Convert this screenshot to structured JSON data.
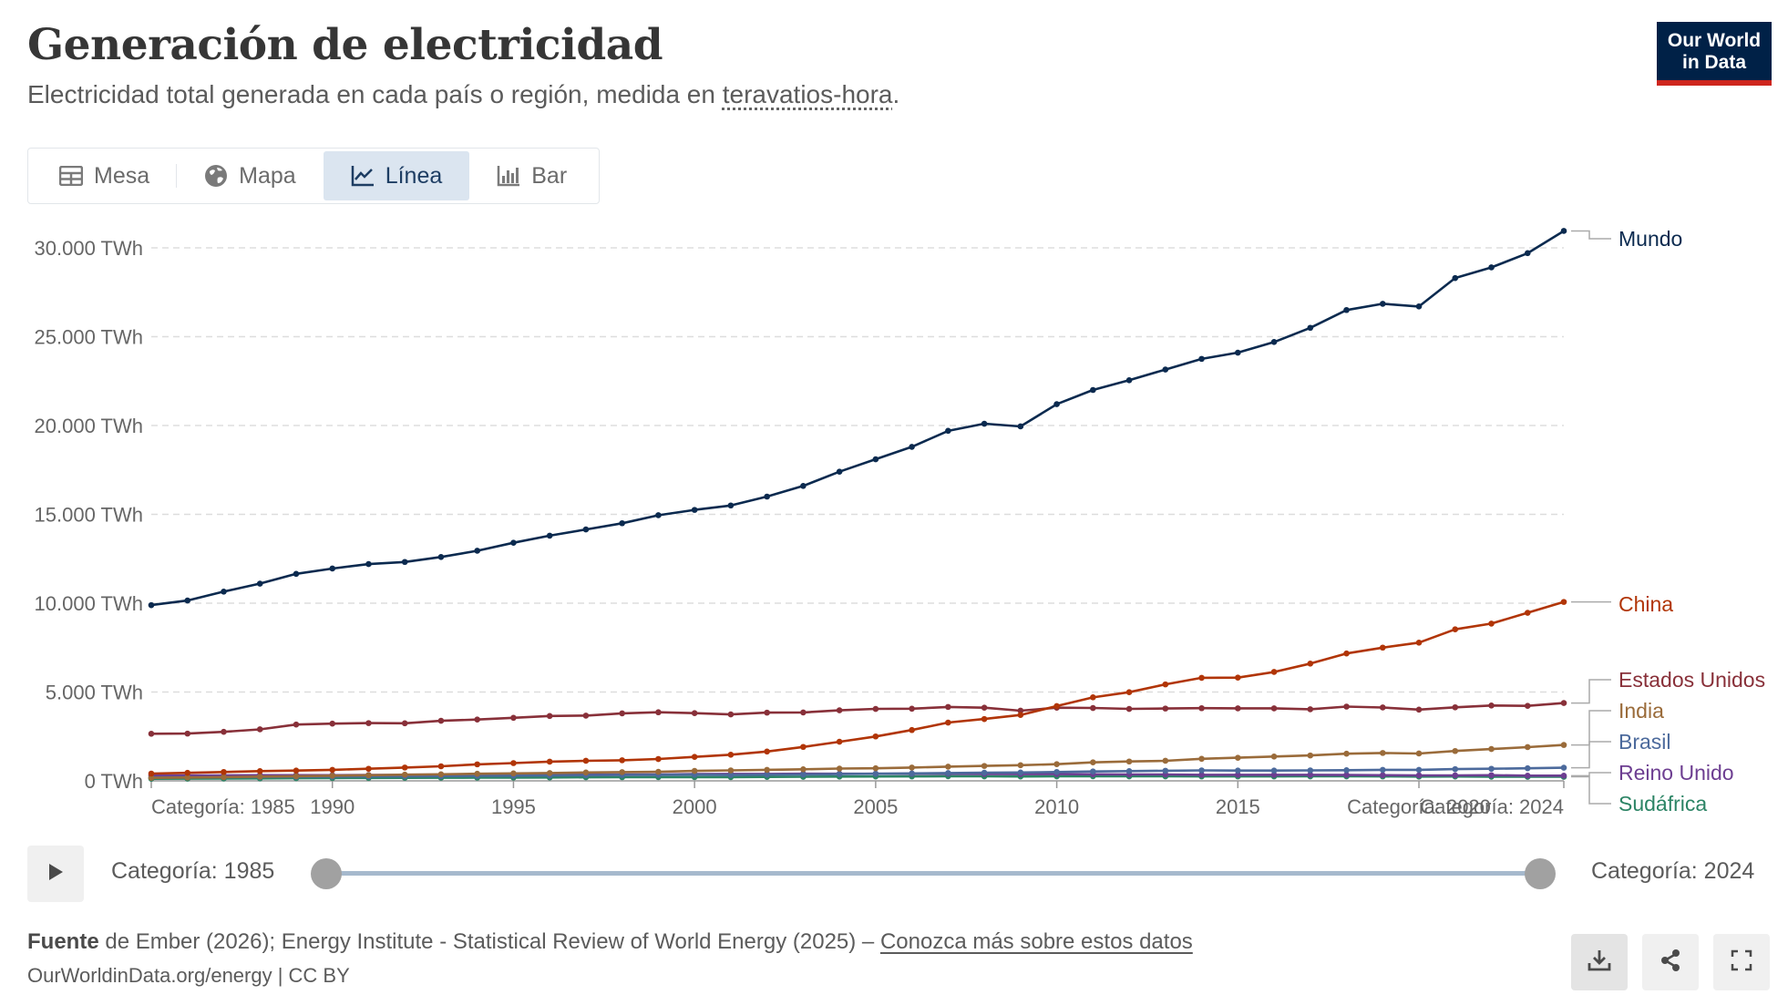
{
  "header": {
    "title": "Generación de electricidad",
    "subtitle_text": "Electricidad total generada en cada país o región, medida en ",
    "subtitle_link": "teravatios-hora",
    "subtitle_end": "."
  },
  "logo": {
    "line1": "Our World",
    "line2": "in Data"
  },
  "tabs": [
    {
      "label": "Mesa",
      "icon": "table-icon"
    },
    {
      "label": "Mapa",
      "icon": "globe-icon"
    },
    {
      "label": "Línea",
      "icon": "line-chart-icon",
      "active": true
    },
    {
      "label": "Bar",
      "icon": "bar-chart-icon"
    }
  ],
  "timeline": {
    "start_label": "Categoría: 1985",
    "end_label": "Categoría: 2024"
  },
  "footer": {
    "source_bold": "Fuente",
    "source_text": " de Ember (2026); Energy Institute - Statistical Review of World Energy (2025) – ",
    "source_link": "Conozca más sobre estos datos",
    "url": "OurWorldinData.org/energy | CC BY"
  },
  "chart_data": {
    "type": "line",
    "x": [
      1985,
      1986,
      1987,
      1988,
      1989,
      1990,
      1991,
      1992,
      1993,
      1994,
      1995,
      1996,
      1997,
      1998,
      1999,
      2000,
      2001,
      2002,
      2003,
      2004,
      2005,
      2006,
      2007,
      2008,
      2009,
      2010,
      2011,
      2012,
      2013,
      2014,
      2015,
      2016,
      2017,
      2018,
      2019,
      2020,
      2021,
      2022,
      2023,
      2024
    ],
    "ylim": [
      0,
      32000
    ],
    "yticks": [
      0,
      5000,
      10000,
      15000,
      20000,
      25000,
      30000
    ],
    "ytick_labels": [
      "0 TWh",
      "5.000 TWh",
      "10.000 TWh",
      "15.000 TWh",
      "20.000 TWh",
      "25.000 TWh",
      "30.000 TWh"
    ],
    "xticks": [
      1990,
      1995,
      2000,
      2005,
      2010,
      2015
    ],
    "xtick_labels": [
      "1990",
      "1995",
      "2000",
      "2005",
      "2010",
      "2015"
    ],
    "x_edge_labels": [
      "Categoría: 1985",
      "Categoría: 2020",
      "Categoría: 2024"
    ],
    "grid": "horizontal dashed",
    "legend": "right end labels",
    "series": [
      {
        "name": "Mundo",
        "color": "#0b2a4f",
        "values": [
          9890,
          10150,
          10650,
          11100,
          11650,
          11950,
          12200,
          12320,
          12600,
          12950,
          13400,
          13800,
          14150,
          14500,
          14950,
          15250,
          15500,
          16000,
          16600,
          17400,
          18100,
          18800,
          19700,
          20100,
          19950,
          21200,
          22000,
          22550,
          23150,
          23750,
          24100,
          24700,
          25500,
          26500,
          26850,
          26700,
          28300,
          28900,
          29700,
          30950
        ]
      },
      {
        "name": "China",
        "color": "#b13507",
        "values": [
          410,
          450,
          500,
          550,
          580,
          620,
          680,
          750,
          820,
          930,
          1000,
          1080,
          1130,
          1160,
          1230,
          1350,
          1470,
          1650,
          1910,
          2200,
          2500,
          2860,
          3280,
          3480,
          3710,
          4210,
          4700,
          4990,
          5430,
          5800,
          5810,
          6130,
          6600,
          7170,
          7500,
          7780,
          8530,
          8850,
          9460,
          10070
        ]
      },
      {
        "name": "Estados Unidos",
        "color": "#883039",
        "values": [
          2650,
          2660,
          2760,
          2900,
          3170,
          3220,
          3250,
          3240,
          3380,
          3450,
          3550,
          3650,
          3670,
          3800,
          3860,
          3810,
          3740,
          3840,
          3850,
          3970,
          4050,
          4060,
          4160,
          4120,
          3950,
          4120,
          4100,
          4050,
          4070,
          4090,
          4080,
          4080,
          4030,
          4180,
          4130,
          4010,
          4140,
          4240,
          4220,
          4380
        ]
      },
      {
        "name": "India",
        "color": "#9a6b3a",
        "values": [
          170,
          190,
          210,
          240,
          260,
          290,
          320,
          350,
          370,
          400,
          420,
          440,
          470,
          490,
          510,
          560,
          590,
          620,
          650,
          690,
          710,
          750,
          800,
          840,
          880,
          940,
          1040,
          1090,
          1130,
          1240,
          1300,
          1370,
          1430,
          1530,
          1570,
          1540,
          1680,
          1790,
          1900,
          2020
        ]
      },
      {
        "name": "Brasil",
        "color": "#4c6a9c",
        "values": [
          190,
          200,
          210,
          220,
          230,
          240,
          250,
          260,
          270,
          280,
          290,
          300,
          320,
          330,
          340,
          350,
          330,
          350,
          360,
          380,
          400,
          420,
          440,
          460,
          470,
          500,
          530,
          550,
          570,
          590,
          580,
          580,
          590,
          600,
          620,
          620,
          660,
          680,
          710,
          740
        ]
      },
      {
        "name": "Reino Unido",
        "color": "#6d3e91",
        "values": [
          300,
          310,
          310,
          320,
          320,
          320,
          330,
          330,
          330,
          330,
          340,
          350,
          350,
          360,
          360,
          380,
          390,
          390,
          400,
          400,
          400,
          400,
          400,
          390,
          380,
          380,
          370,
          360,
          360,
          340,
          340,
          340,
          340,
          330,
          320,
          310,
          310,
          320,
          290,
          290
        ]
      },
      {
        "name": "Sudáfrica",
        "color": "#2c8465",
        "values": [
          120,
          125,
          130,
          140,
          150,
          160,
          165,
          170,
          175,
          180,
          185,
          190,
          200,
          205,
          210,
          210,
          210,
          220,
          230,
          240,
          245,
          250,
          260,
          255,
          245,
          255,
          260,
          255,
          255,
          250,
          250,
          250,
          255,
          255,
          250,
          240,
          245,
          235,
          230,
          230
        ]
      }
    ]
  }
}
